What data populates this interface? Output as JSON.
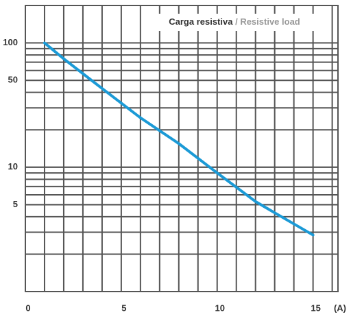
{
  "chart_data": {
    "type": "line",
    "title": "Carga resistiva",
    "subtitle": "/ Resistive load",
    "x_label": "(A)",
    "x": [
      1,
      2,
      4,
      6,
      8,
      10,
      12,
      13,
      15
    ],
    "series": [
      {
        "name": "Resistive load",
        "color": "#1b9ad6",
        "values": [
          100,
          74.5,
          43,
          25,
          15.5,
          9,
          5.3,
          4.3,
          2.85
        ]
      }
    ],
    "xlim": [
      0,
      16.3
    ],
    "xticks": [
      0,
      5,
      10,
      15
    ],
    "xgrid_step": 1,
    "ylim": [
      1,
      200
    ],
    "yticks": [
      5,
      10,
      50,
      100
    ],
    "log_y": true,
    "grid": true,
    "minor_grid": true
  }
}
